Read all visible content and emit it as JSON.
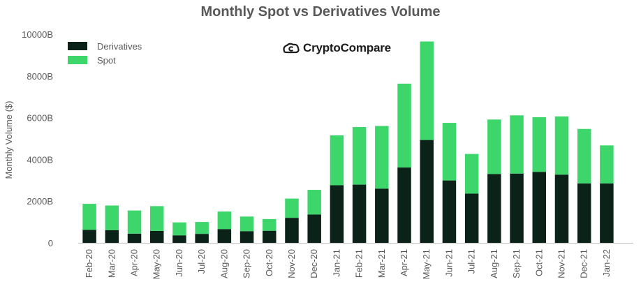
{
  "colors": {
    "derivatives": "#0a2218",
    "spot": "#3dd66b",
    "axis_text": "#595959",
    "axis_line": "#bfbfbf"
  },
  "logo": {
    "text": "CryptoCompare",
    "icon": "cryptocompare-logo-icon"
  },
  "chart_data": {
    "type": "bar",
    "stacked": true,
    "title": "Monthly Spot vs Derivatives Volume",
    "xlabel": "",
    "ylabel": "Monthly Volume ($)",
    "ylim": [
      0,
      10000
    ],
    "yticks": [
      0,
      2000,
      4000,
      6000,
      8000,
      10000
    ],
    "ytick_labels": [
      "0",
      "2000B",
      "4000B",
      "6000B",
      "8000B",
      "10000B"
    ],
    "grid": false,
    "legend": "top-left",
    "categories": [
      "Feb-20",
      "Mar-20",
      "Apr-20",
      "May-20",
      "Jun-20",
      "Jul-20",
      "Aug-20",
      "Sep-20",
      "Oct-20",
      "Nov-20",
      "Dec-20",
      "Jan-21",
      "Feb-21",
      "Mar-21",
      "Apr-21",
      "May-21",
      "Jun-21",
      "Jul-21",
      "Aug-21",
      "Sep-21",
      "Oct-21",
      "Nov-21",
      "Dec-21",
      "Jan-22"
    ],
    "series": [
      {
        "name": "Derivatives",
        "values": [
          620,
          610,
          440,
          570,
          360,
          430,
          660,
          560,
          580,
          1200,
          1360,
          2760,
          2790,
          2600,
          3610,
          4930,
          2990,
          2360,
          3300,
          3320,
          3400,
          3270,
          2850,
          2850
        ]
      },
      {
        "name": "Spot",
        "values": [
          1250,
          1180,
          1110,
          1190,
          620,
          570,
          840,
          700,
          560,
          920,
          1180,
          2390,
          2760,
          3000,
          4020,
          4720,
          2760,
          1900,
          2610,
          2790,
          2620,
          2790,
          2610,
          1820
        ]
      }
    ]
  }
}
